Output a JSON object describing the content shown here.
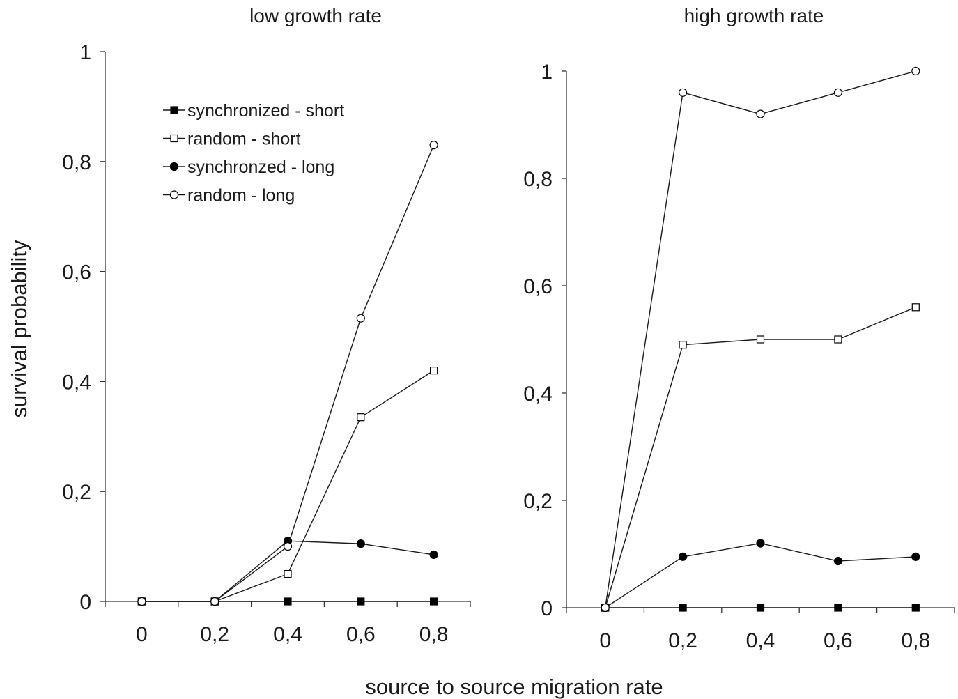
{
  "figure": {
    "xlabel": "source to source migration rate",
    "ylabel": "survival probability"
  },
  "chart_data": [
    {
      "type": "line",
      "title": "low growth rate",
      "x": [
        0,
        0.2,
        0.4,
        0.6,
        0.8
      ],
      "x_tick_labels": [
        "0",
        "0,2",
        "0,4",
        "0,6",
        "0,8"
      ],
      "xlim": [
        -0.1,
        0.9
      ],
      "ylim": [
        0,
        1
      ],
      "y_ticks": [
        0,
        0.2,
        0.4,
        0.6,
        0.8,
        1
      ],
      "y_tick_labels": [
        "0",
        "0,2",
        "0,4",
        "0,6",
        "0,8",
        "1"
      ],
      "grid": false,
      "legend_position": "top-left",
      "series": [
        {
          "name": "synchronized - short",
          "marker": "filled-square",
          "color": "#000000",
          "values": [
            0,
            0,
            0,
            0,
            0
          ]
        },
        {
          "name": "random - short",
          "marker": "open-square",
          "color": "#000000",
          "values": [
            0,
            0,
            0.05,
            0.335,
            0.42
          ]
        },
        {
          "name": "synchronzed - long",
          "marker": "filled-circle",
          "color": "#000000",
          "values": [
            0,
            0,
            0.11,
            0.105,
            0.085
          ]
        },
        {
          "name": "random - long",
          "marker": "open-circle",
          "color": "#000000",
          "values": [
            0,
            0,
            0.1,
            0.515,
            0.83
          ]
        }
      ]
    },
    {
      "type": "line",
      "title": "high growth rate",
      "x": [
        0,
        0.2,
        0.4,
        0.6,
        0.8
      ],
      "x_tick_labels": [
        "0",
        "0,2",
        "0,4",
        "0,6",
        "0,8"
      ],
      "xlim": [
        -0.1,
        0.9
      ],
      "ylim": [
        0,
        1
      ],
      "y_ticks": [
        0,
        0.2,
        0.4,
        0.6,
        0.8,
        1
      ],
      "y_tick_labels": [
        "0",
        "0,2",
        "0,4",
        "0,6",
        "0,8",
        "1"
      ],
      "grid": false,
      "series": [
        {
          "name": "synchronized - short",
          "marker": "filled-square",
          "color": "#000000",
          "values": [
            0,
            0,
            0,
            0,
            0
          ]
        },
        {
          "name": "random - short",
          "marker": "open-square",
          "color": "#000000",
          "values": [
            0,
            0.49,
            0.5,
            0.5,
            0.56
          ]
        },
        {
          "name": "synchronzed - long",
          "marker": "filled-circle",
          "color": "#000000",
          "values": [
            0,
            0.095,
            0.12,
            0.087,
            0.095
          ]
        },
        {
          "name": "random - long",
          "marker": "open-circle",
          "color": "#000000",
          "values": [
            0,
            0.96,
            0.92,
            0.96,
            1.0
          ]
        }
      ]
    }
  ]
}
